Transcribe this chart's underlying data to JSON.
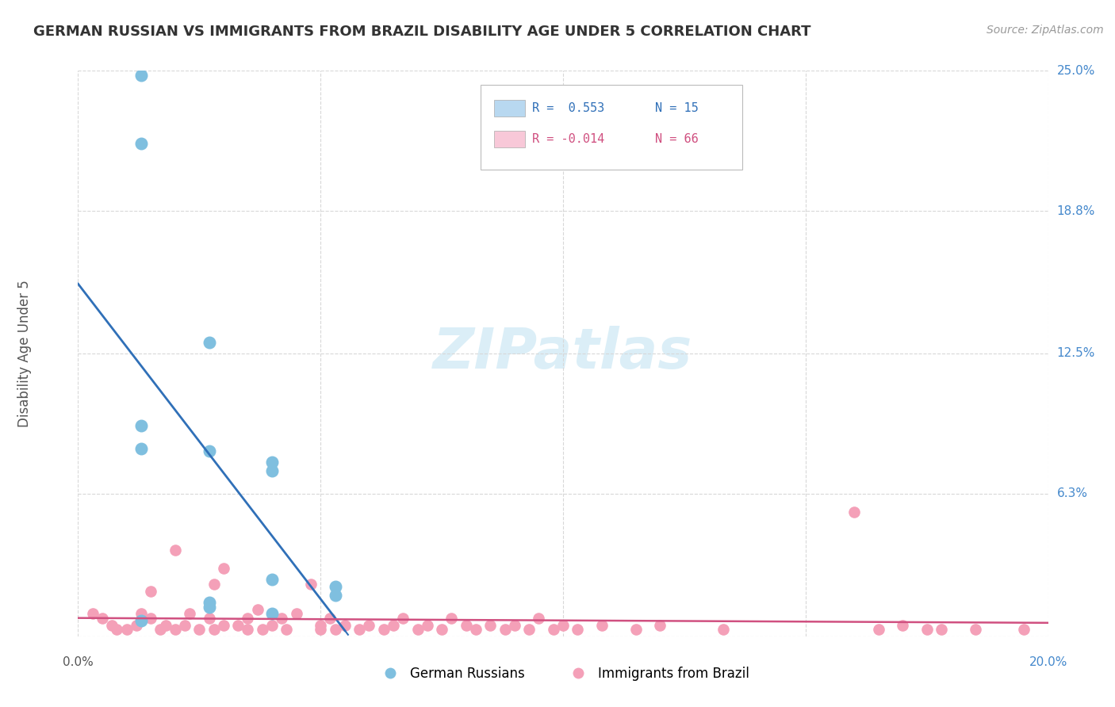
{
  "title": "GERMAN RUSSIAN VS IMMIGRANTS FROM BRAZIL DISABILITY AGE UNDER 5 CORRELATION CHART",
  "source": "Source: ZipAtlas.com",
  "ylabel": "Disability Age Under 5",
  "xlim": [
    0.0,
    0.2
  ],
  "ylim": [
    0.0,
    0.25
  ],
  "background_color": "#ffffff",
  "legend_r1": "R =  0.553",
  "legend_n1": "N = 15",
  "legend_r2": "R = -0.014",
  "legend_n2": "N = 66",
  "legend_label1": "German Russians",
  "legend_label2": "Immigrants from Brazil",
  "color_blue": "#7fbfdf",
  "color_pink": "#f4a0b8",
  "color_blue_line": "#3070b8",
  "color_pink_line": "#d05080",
  "color_legend_box_blue": "#b8d8f0",
  "color_legend_box_pink": "#f8c8d8",
  "color_grid": "#d8d8d8",
  "color_title": "#333333",
  "color_source": "#999999",
  "color_ylabel": "#555555",
  "color_axis_label": "#555555",
  "color_right_labels": "#4488cc",
  "watermark_color": "#cce8f4",
  "ytick_vals": [
    0.0,
    0.063,
    0.125,
    0.188,
    0.25
  ],
  "ytick_labels": [
    "",
    "6.3%",
    "12.5%",
    "18.8%",
    "25.0%"
  ],
  "xtick_vals": [
    0.0,
    0.05,
    0.1,
    0.15,
    0.2
  ],
  "xtick_labels": [
    "0.0%",
    "",
    "",
    "",
    "20.0%"
  ],
  "german_russian_x": [
    0.013,
    0.013,
    0.027,
    0.013,
    0.013,
    0.027,
    0.04,
    0.04,
    0.04,
    0.053,
    0.053,
    0.027,
    0.027,
    0.04,
    0.013
  ],
  "german_russian_y": [
    0.248,
    0.218,
    0.13,
    0.093,
    0.083,
    0.082,
    0.077,
    0.073,
    0.025,
    0.022,
    0.018,
    0.015,
    0.013,
    0.01,
    0.007
  ],
  "brazil_x": [
    0.003,
    0.005,
    0.007,
    0.008,
    0.01,
    0.012,
    0.013,
    0.015,
    0.015,
    0.017,
    0.018,
    0.02,
    0.02,
    0.022,
    0.023,
    0.025,
    0.027,
    0.028,
    0.028,
    0.03,
    0.03,
    0.033,
    0.035,
    0.035,
    0.037,
    0.038,
    0.04,
    0.042,
    0.043,
    0.045,
    0.048,
    0.05,
    0.05,
    0.052,
    0.053,
    0.055,
    0.058,
    0.06,
    0.063,
    0.065,
    0.067,
    0.07,
    0.072,
    0.075,
    0.077,
    0.08,
    0.082,
    0.085,
    0.088,
    0.09,
    0.093,
    0.095,
    0.098,
    0.1,
    0.103,
    0.108,
    0.115,
    0.12,
    0.133,
    0.16,
    0.165,
    0.17,
    0.175,
    0.178,
    0.185,
    0.195
  ],
  "brazil_y": [
    0.01,
    0.008,
    0.005,
    0.003,
    0.003,
    0.005,
    0.01,
    0.008,
    0.02,
    0.003,
    0.005,
    0.003,
    0.038,
    0.005,
    0.01,
    0.003,
    0.008,
    0.003,
    0.023,
    0.005,
    0.03,
    0.005,
    0.003,
    0.008,
    0.012,
    0.003,
    0.005,
    0.008,
    0.003,
    0.01,
    0.023,
    0.005,
    0.003,
    0.008,
    0.003,
    0.005,
    0.003,
    0.005,
    0.003,
    0.005,
    0.008,
    0.003,
    0.005,
    0.003,
    0.008,
    0.005,
    0.003,
    0.005,
    0.003,
    0.005,
    0.003,
    0.008,
    0.003,
    0.005,
    0.003,
    0.005,
    0.003,
    0.005,
    0.003,
    0.055,
    0.003,
    0.005,
    0.003,
    0.003,
    0.003,
    0.003
  ]
}
